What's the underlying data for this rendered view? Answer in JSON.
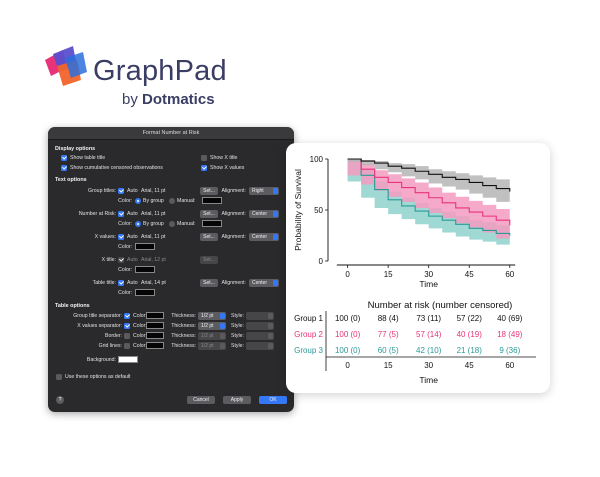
{
  "logo": {
    "name": "GraphPad",
    "by": "by",
    "company": "Dotmatics"
  },
  "dialog": {
    "title": "Format Number at Risk",
    "display_options": {
      "heading": "Display options",
      "show_table_title": "Show table title",
      "show_cumulative": "Show cumulative censored observations",
      "show_x_title": "Show X title",
      "show_x_values": "Show X values"
    },
    "text_options": {
      "heading": "Text options",
      "rows": [
        {
          "label": "Group titles:",
          "auto": "Auto",
          "font": "Arial, 11 pt",
          "set": "Set...",
          "align_label": "Alignment:",
          "align": "Right",
          "color_label": "Color:",
          "by_group": "By group",
          "manual": "Manual:"
        },
        {
          "label": "Number at Risk:",
          "auto": "Auto",
          "font": "Arial, 11 pt",
          "set": "Set...",
          "align_label": "Alignment:",
          "align": "Center",
          "color_label": "Color:",
          "by_group": "By group",
          "manual": "Manual:"
        },
        {
          "label": "X values:",
          "auto": "Auto",
          "font": "Arial, 11 pt",
          "set": "Set...",
          "align_label": "Alignment:",
          "align": "Center",
          "color_label": "Color:"
        },
        {
          "label": "X title:",
          "auto": "Auto",
          "font": "Arial, 12 pt",
          "set": "Set...",
          "color_label": "Color:"
        },
        {
          "label": "Table title:",
          "auto": "Auto",
          "font": "Arial, 14 pt",
          "set": "Set...",
          "align_label": "Alignment:",
          "align": "Center",
          "color_label": "Color:"
        }
      ]
    },
    "table_options": {
      "heading": "Table options",
      "rows": [
        {
          "label": "Group title separator:",
          "color_label": "Color:",
          "thickness_label": "Thickness:",
          "thickness": "1/2 pt",
          "style_label": "Style:"
        },
        {
          "label": "X values separator:",
          "color_label": "Color:",
          "thickness_label": "Thickness:",
          "thickness": "1/2 pt",
          "style_label": "Style:"
        },
        {
          "label": "Border:",
          "color_label": "Color:",
          "thickness_label": "Thickness:",
          "thickness": "1/2 pt",
          "style_label": "Style:"
        },
        {
          "label": "Grid lines:",
          "color_label": "Color:",
          "thickness_label": "Thickness:",
          "thickness": "1/2 pt",
          "style_label": "Style:"
        }
      ],
      "background_label": "Background:"
    },
    "use_default": "Use these options as default",
    "help": "?",
    "cancel": "Cancel",
    "apply": "Apply",
    "ok": "OK"
  },
  "chart_data": {
    "type": "line",
    "title": "",
    "xlabel": "Time",
    "ylabel": "Probability of Survival",
    "xlim": [
      -8,
      66
    ],
    "ylim": [
      0,
      100
    ],
    "x_ticks": [
      0,
      15,
      30,
      45,
      60
    ],
    "y_ticks": [
      0,
      50,
      100
    ],
    "colors": {
      "g1": "#111111",
      "g2": "#e8337a",
      "g3": "#2a9a97",
      "g1_band": "#b5b5b5",
      "g2_band": "#f39bc0",
      "g3_band": "#8fd1cd"
    },
    "series": [
      {
        "name": "Group 1",
        "color": "#111111",
        "x": [
          0,
          5,
          10,
          15,
          20,
          25,
          30,
          35,
          40,
          45,
          50,
          55,
          60
        ],
        "y": [
          100,
          98,
          96,
          93,
          91,
          88,
          85,
          82,
          80,
          77,
          74,
          71,
          68
        ],
        "lower": [
          100,
          97,
          94,
          90,
          87,
          83,
          80,
          76,
          73,
          70,
          66,
          62,
          58
        ],
        "upper": [
          100,
          99,
          98,
          96,
          95,
          93,
          90,
          88,
          86,
          84,
          82,
          80,
          78
        ]
      },
      {
        "name": "Group 2",
        "color": "#e8337a",
        "x": [
          0,
          5,
          10,
          15,
          20,
          25,
          30,
          35,
          40,
          45,
          50,
          55,
          60
        ],
        "y": [
          100,
          90,
          82,
          77,
          72,
          67,
          62,
          57,
          52,
          48,
          44,
          40,
          35
        ],
        "lower": [
          100,
          84,
          75,
          69,
          63,
          58,
          52,
          47,
          42,
          37,
          33,
          28,
          22
        ],
        "upper": [
          100,
          95,
          89,
          85,
          81,
          77,
          72,
          67,
          63,
          59,
          55,
          51,
          47
        ]
      },
      {
        "name": "Group 3",
        "color": "#2a9a97",
        "x": [
          0,
          5,
          10,
          15,
          20,
          25,
          30,
          35,
          40,
          45,
          50,
          55,
          60
        ],
        "y": [
          100,
          84,
          70,
          60,
          54,
          49,
          44,
          40,
          36,
          32,
          30,
          27,
          25
        ],
        "lower": [
          100,
          78,
          62,
          52,
          46,
          41,
          36,
          32,
          28,
          24,
          21,
          19,
          16
        ],
        "upper": [
          100,
          90,
          78,
          68,
          62,
          57,
          52,
          48,
          44,
          40,
          38,
          35,
          33
        ]
      }
    ],
    "risk_table": {
      "title": "Number at risk (number censored)",
      "x_values": [
        "0",
        "15",
        "30",
        "45",
        "60"
      ],
      "x_title": "Time",
      "rows": [
        {
          "group": "Group 1",
          "color": "#111111",
          "values": [
            "100 (0)",
            "88 (4)",
            "73 (11)",
            "57 (22)",
            "40 (69)"
          ]
        },
        {
          "group": "Group 2",
          "color": "#e8337a",
          "values": [
            "100 (0)",
            "77 (5)",
            "57 (14)",
            "40 (19)",
            "18 (49)"
          ]
        },
        {
          "group": "Group 3",
          "color": "#2a9a97",
          "values": [
            "100 (0)",
            "60 (5)",
            "42 (10)",
            "21 (18)",
            "9 (36)"
          ]
        }
      ]
    }
  }
}
